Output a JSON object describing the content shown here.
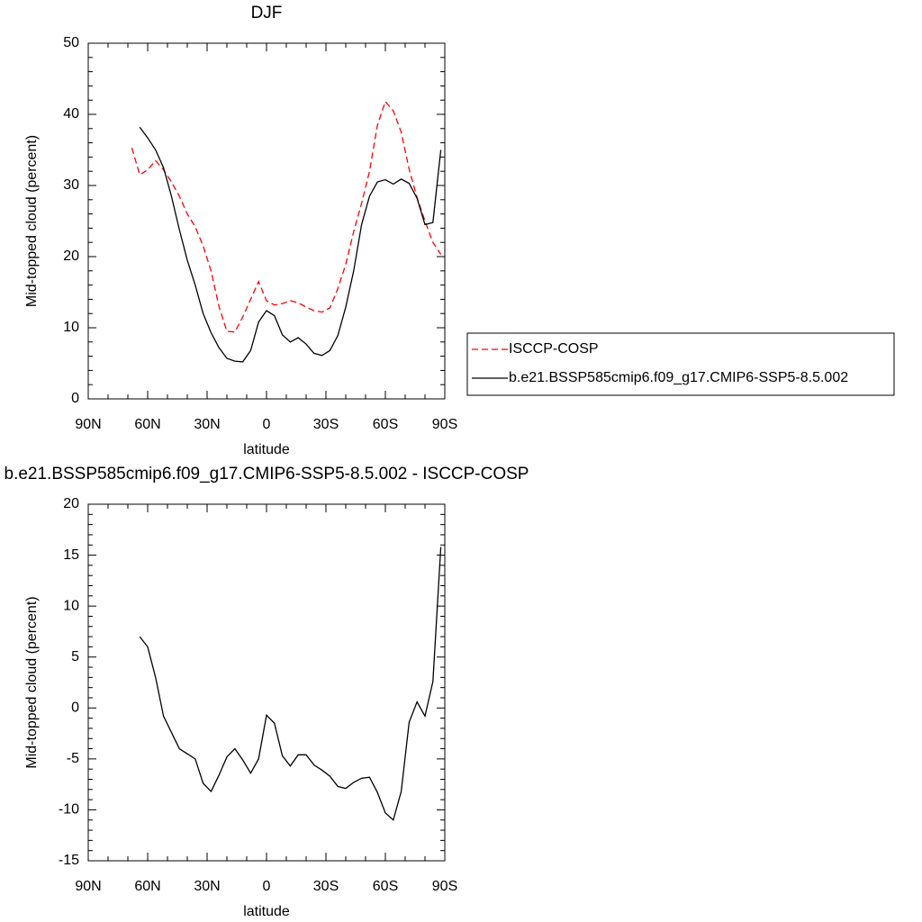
{
  "chart_data": [
    {
      "type": "line",
      "title": "DJF",
      "xlabel": "latitude",
      "ylabel": "Mid-topped cloud (percent)",
      "x": [
        68,
        64,
        60,
        56,
        52,
        48,
        44,
        40,
        36,
        32,
        28,
        24,
        20,
        16,
        12,
        8,
        4,
        0,
        -4,
        -8,
        -12,
        -16,
        -20,
        -24,
        -28,
        -32,
        -36,
        -40,
        -44,
        -48,
        -52,
        -56,
        -60,
        -64,
        -68,
        -72,
        -76,
        -80,
        -84,
        -88
      ],
      "xlim": [
        90,
        -90
      ],
      "xticks": [
        {
          "value": 90,
          "label": "90N"
        },
        {
          "value": 60,
          "label": "60N"
        },
        {
          "value": 30,
          "label": "30N"
        },
        0,
        {
          "value": -30,
          "label": "30S"
        },
        {
          "value": -60,
          "label": "60S"
        },
        {
          "value": -90,
          "label": "90S"
        }
      ],
      "ylim": [
        0,
        50
      ],
      "yticks": [
        0,
        10,
        20,
        30,
        40,
        50
      ],
      "legend": "right",
      "series": [
        {
          "name": "ISCCP-COSP",
          "color": "#ff0000",
          "dashed": true,
          "values": [
            35.3,
            31.5,
            32.2,
            33.5,
            32.2,
            30.5,
            28.5,
            26,
            24.2,
            21.5,
            18,
            13,
            9.5,
            9.4,
            11.5,
            14,
            16.5,
            13.8,
            13.2,
            13.4,
            13.8,
            13.5,
            12.9,
            12.4,
            12.2,
            12.8,
            15.5,
            18.9,
            23.5,
            27.5,
            32,
            38.5,
            41.8,
            40.5,
            37.5,
            32.3,
            28.3,
            25,
            22,
            20.3
          ]
        },
        {
          "name": "b.e21.BSSP585cmip6.f09_g17.CMIP6-SSP5-8.5.002",
          "color": "#000000",
          "dashed": false,
          "values": [
            null,
            38.2,
            36.7,
            35,
            32.5,
            28.5,
            23.8,
            19.5,
            16,
            12,
            9.3,
            7.2,
            5.7,
            5.3,
            5.2,
            6.8,
            10.8,
            12.4,
            11.7,
            9,
            8,
            8.6,
            7.7,
            6.4,
            6.1,
            6.8,
            8.9,
            12.9,
            18,
            24.5,
            28.5,
            30.5,
            30.8,
            30.2,
            30.9,
            30.3,
            28.2,
            24.5,
            24.8,
            35
          ]
        }
      ]
    },
    {
      "type": "line",
      "title": "b.e21.BSSP585cmip6.f09_g17.CMIP6-SSP5-8.5.002 - ISCCP-COSP",
      "xlabel": "latitude",
      "ylabel": "Mid-topped cloud (percent)",
      "x": [
        68,
        64,
        60,
        56,
        52,
        48,
        44,
        40,
        36,
        32,
        28,
        24,
        20,
        16,
        12,
        8,
        4,
        0,
        -4,
        -8,
        -12,
        -16,
        -20,
        -24,
        -28,
        -32,
        -36,
        -40,
        -44,
        -48,
        -52,
        -56,
        -60,
        -64,
        -68,
        -72,
        -76,
        -80,
        -84,
        -88
      ],
      "xlim": [
        90,
        -90
      ],
      "xticks": [
        {
          "value": 90,
          "label": "90N"
        },
        {
          "value": 60,
          "label": "60N"
        },
        {
          "value": 30,
          "label": "30N"
        },
        0,
        {
          "value": -30,
          "label": "30S"
        },
        {
          "value": -60,
          "label": "60S"
        },
        {
          "value": -90,
          "label": "90S"
        }
      ],
      "ylim": [
        -15,
        20
      ],
      "yticks": [
        -15,
        -10,
        -5,
        0,
        5,
        10,
        15,
        20
      ],
      "series": [
        {
          "color": "#000000",
          "dashed": false,
          "values": [
            null,
            7.0,
            6.0,
            3.0,
            -0.8,
            -2.4,
            -4.0,
            -4.5,
            -5.0,
            -7.4,
            -8.2,
            -6.6,
            -4.8,
            -4.0,
            -5.1,
            -6.4,
            -5.0,
            -0.7,
            -1.5,
            -4.7,
            -5.7,
            -4.6,
            -4.6,
            -5.6,
            -6.1,
            -6.7,
            -7.7,
            -7.9,
            -7.3,
            -6.9,
            -6.8,
            -8.3,
            -10.3,
            -11.0,
            -8.2,
            -1.4,
            0.6,
            -0.8,
            2.6,
            15.8
          ]
        }
      ]
    }
  ]
}
